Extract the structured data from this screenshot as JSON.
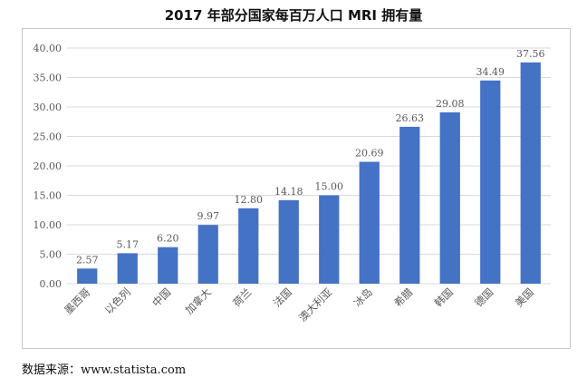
{
  "title": "2017 年部分国家每百万人口 MRI 拥有量",
  "source": "数据来源：www.statista.com",
  "colors": {
    "bar": "#4472C4",
    "grid": "#d9d9d9",
    "text": "#595959"
  },
  "chart_data": {
    "type": "bar",
    "title": "2017 年部分国家每百万人口 MRI 拥有量",
    "categories": [
      "墨西哥",
      "以色列",
      "中国",
      "加拿大",
      "荷兰",
      "法国",
      "澳大利亚",
      "冰岛",
      "希腊",
      "韩国",
      "德国",
      "美国"
    ],
    "values": [
      2.57,
      5.17,
      6.2,
      9.97,
      12.8,
      14.18,
      15.0,
      20.69,
      26.63,
      29.08,
      34.49,
      37.56
    ],
    "value_labels": [
      "2.57",
      "5.17",
      "6.20",
      "9.97",
      "12.80",
      "14.18",
      "15.00",
      "20.69",
      "26.63",
      "29.08",
      "34.49",
      "37.56"
    ],
    "yticks": [
      "0.00",
      "5.00",
      "10.00",
      "15.00",
      "20.00",
      "25.00",
      "30.00",
      "35.00",
      "40.00"
    ],
    "ylim": [
      0,
      40
    ],
    "xlabel": "",
    "ylabel": "",
    "grid": true,
    "legend": "none"
  }
}
